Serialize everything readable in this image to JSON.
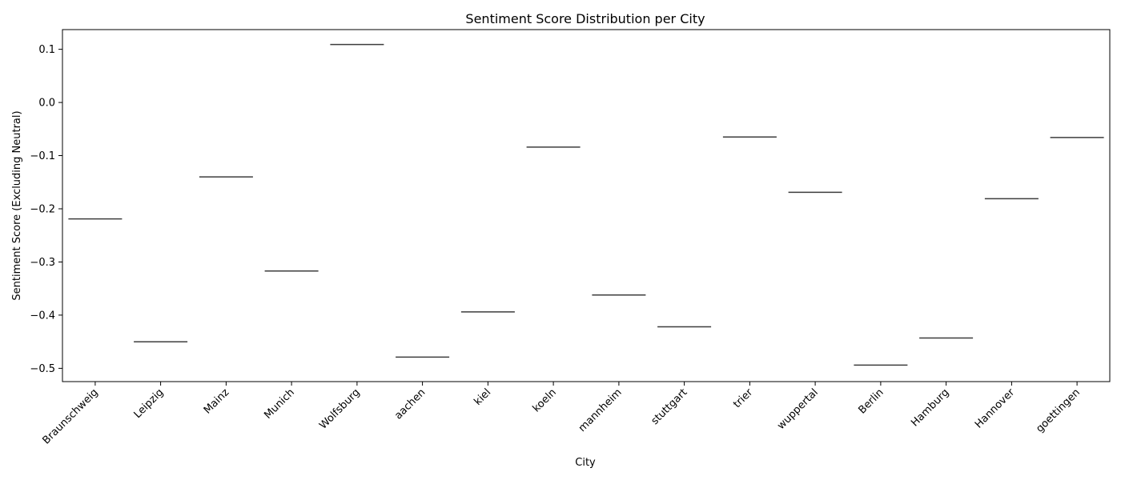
{
  "chart_data": {
    "type": "box",
    "title": "Sentiment Score Distribution per City",
    "xlabel": "City",
    "ylabel": "Sentiment Score (Excluding Neutral)",
    "ylim": [
      -0.525,
      0.137
    ],
    "yticks": [
      0.1,
      0.0,
      -0.1,
      -0.2,
      -0.3,
      -0.4,
      -0.5
    ],
    "ytick_labels": [
      "0.1",
      "0.0",
      "−0.1",
      "−0.2",
      "−0.3",
      "−0.4",
      "−0.5"
    ],
    "categories": [
      "Braunschweig",
      "Leipzig",
      "Mainz",
      "Munich",
      "Wolfsburg",
      "aachen",
      "kiel",
      "koeln",
      "mannheim",
      "stuttgart",
      "trier",
      "wuppertal",
      "Berlin",
      "Hamburg",
      "Hannover",
      "goettingen"
    ],
    "values": [
      -0.219,
      -0.45,
      -0.14,
      -0.317,
      0.109,
      -0.479,
      -0.394,
      -0.084,
      -0.362,
      -0.422,
      -0.065,
      -0.169,
      -0.494,
      -0.443,
      -0.181,
      -0.066
    ],
    "grid": false,
    "colors": {
      "median_line": "#3d3d3d",
      "axes": "#000000"
    }
  }
}
